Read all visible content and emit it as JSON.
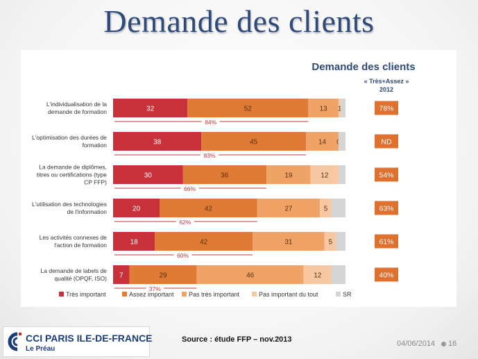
{
  "slide": {
    "title": "Demande des clients",
    "source": "Source : étude FFP – nov.2013",
    "date": "04/06/2014",
    "page": "16",
    "logo": {
      "name": "CCI PARIS ILE-DE-FRANCE",
      "sub": "Le Préau"
    }
  },
  "colors": {
    "tres": "#c8303a",
    "assez": "#e07b36",
    "pas_tres": "#f0a367",
    "pas_tout": "#f7c8a2",
    "sr": "#d4d4d4",
    "badge": "#e0702e",
    "title": "#2e4a7a"
  },
  "chart_data": {
    "type": "bar",
    "orientation": "horizontal",
    "stacked": true,
    "title": "Demande des clients",
    "side_header": [
      "« Très+Assez »",
      "2012"
    ],
    "categories": [
      [
        "L'individualisation de la",
        "demande de formation"
      ],
      [
        "L'optimisation des durées de",
        "formation"
      ],
      [
        "La demande de diplômes,",
        "titres ou certifications (type",
        "CP FFP)"
      ],
      [
        "L'utilisation des technologies",
        "de l'information"
      ],
      [
        "Les activités connexes de",
        "l'action de formation"
      ],
      [
        "La demande de labels de",
        "qualité (OPQF, ISO)"
      ]
    ],
    "series": [
      {
        "name": "Très important",
        "key": "tres",
        "values": [
          32,
          38,
          30,
          20,
          18,
          7
        ]
      },
      {
        "name": "Assez important",
        "key": "assez",
        "values": [
          52,
          45,
          36,
          42,
          42,
          29
        ]
      },
      {
        "name": "Pas très important",
        "key": "pas_tres",
        "values": [
          13,
          14,
          19,
          27,
          31,
          46
        ]
      },
      {
        "name": "Pas important du tout",
        "key": "pas_tout",
        "values": [
          1,
          0,
          12,
          5,
          5,
          12
        ]
      },
      {
        "name": "SR",
        "key": "sr",
        "values": [
          2,
          3,
          3,
          6,
          4,
          6
        ]
      }
    ],
    "segment_labels": [
      [
        "32",
        "52",
        "13",
        "1",
        ""
      ],
      [
        "38",
        "45",
        "14",
        "0",
        ""
      ],
      [
        "30",
        "36",
        "19",
        "12",
        ""
      ],
      [
        "20",
        "42",
        "27",
        "5",
        ""
      ],
      [
        "18",
        "42",
        "31",
        "5",
        ""
      ],
      [
        "7",
        "29",
        "46",
        "12",
        ""
      ]
    ],
    "sum_labels": [
      "84%",
      "83%",
      "66%",
      "62%",
      "60%",
      "37%"
    ],
    "badges_2012": [
      "78%",
      "ND",
      "54%",
      "63%",
      "61%",
      "40%"
    ],
    "xlim": [
      0,
      100
    ]
  }
}
